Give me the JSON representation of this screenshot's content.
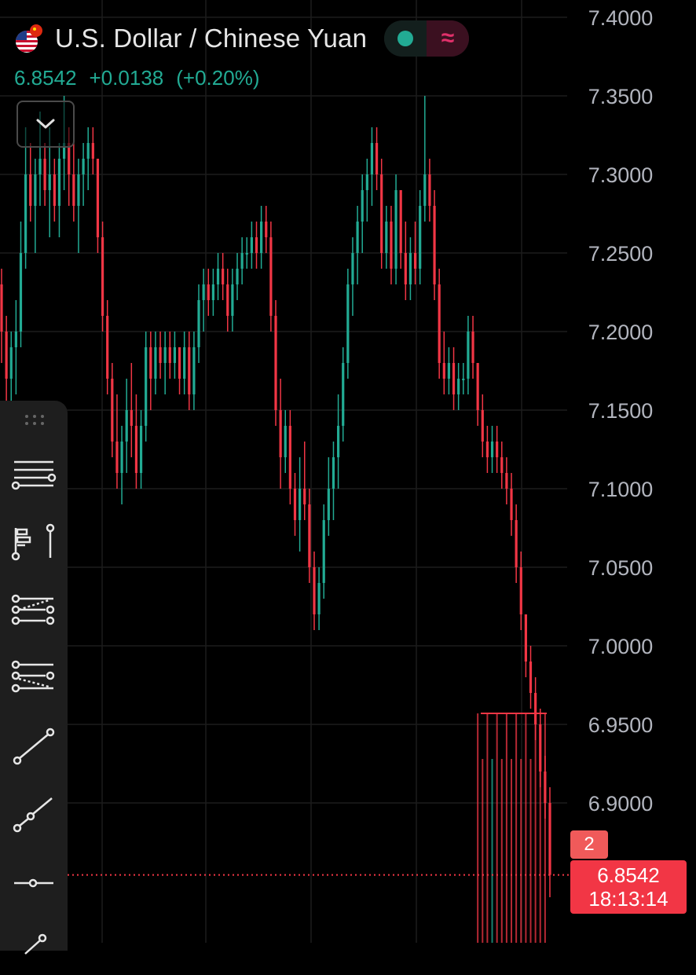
{
  "header": {
    "symbol_title": "U.S. Dollar / Chinese Yuan",
    "price": "6.8542",
    "change": "+0.0138",
    "change_pct": "(+0.20%)",
    "pill_right_glyph": "≈"
  },
  "last_price_badge": {
    "count": "2",
    "price": "6.8542",
    "countdown": "18:13:14"
  },
  "toolbar": {
    "tools": [
      "horizontal-lines-icon",
      "fib-retracement-icon",
      "fib-channel-icon",
      "fib-fan-icon",
      "trend-line-icon",
      "ray-icon",
      "horizontal-ray-icon",
      "more-tools-icon"
    ]
  },
  "colors": {
    "up": "#22ab94",
    "down": "#f23645",
    "background": "#000000",
    "grid": "#1c1c1c",
    "axis_text": "#b2b5be"
  },
  "chart_data": {
    "type": "candlestick",
    "y_axis_side": "right",
    "ylim": [
      6.81,
      7.41
    ],
    "y_ticks": [
      "7.4000",
      "7.3500",
      "7.3000",
      "7.2500",
      "7.2000",
      "7.1500",
      "7.1000",
      "7.0500",
      "7.0000",
      "6.9500",
      "6.9000"
    ],
    "last_price": 6.8542,
    "series": [
      {
        "name": "USDCNY",
        "values": [
          [
            7.23,
            7.24,
            7.18,
            7.2
          ],
          [
            7.2,
            7.21,
            7.15,
            7.17
          ],
          [
            7.17,
            7.2,
            7.15,
            7.19
          ],
          [
            7.19,
            7.22,
            7.16,
            7.2
          ],
          [
            7.2,
            7.27,
            7.19,
            7.25
          ],
          [
            7.25,
            7.33,
            7.24,
            7.3
          ],
          [
            7.3,
            7.32,
            7.27,
            7.28
          ],
          [
            7.28,
            7.31,
            7.25,
            7.3
          ],
          [
            7.3,
            7.34,
            7.28,
            7.31
          ],
          [
            7.31,
            7.32,
            7.28,
            7.29
          ],
          [
            7.29,
            7.33,
            7.26,
            7.3
          ],
          [
            7.3,
            7.31,
            7.27,
            7.28
          ],
          [
            7.28,
            7.32,
            7.26,
            7.31
          ],
          [
            7.31,
            7.35,
            7.29,
            7.32
          ],
          [
            7.32,
            7.33,
            7.28,
            7.3
          ],
          [
            7.3,
            7.32,
            7.27,
            7.28
          ],
          [
            7.28,
            7.31,
            7.25,
            7.3
          ],
          [
            7.3,
            7.32,
            7.28,
            7.31
          ],
          [
            7.31,
            7.33,
            7.29,
            7.32
          ],
          [
            7.32,
            7.33,
            7.3,
            7.31
          ],
          [
            7.31,
            7.31,
            7.25,
            7.26
          ],
          [
            7.26,
            7.27,
            7.2,
            7.21
          ],
          [
            7.21,
            7.22,
            7.16,
            7.17
          ],
          [
            7.17,
            7.18,
            7.12,
            7.13
          ],
          [
            7.13,
            7.16,
            7.1,
            7.11
          ],
          [
            7.11,
            7.14,
            7.09,
            7.13
          ],
          [
            7.13,
            7.17,
            7.11,
            7.15
          ],
          [
            7.15,
            7.18,
            7.12,
            7.14
          ],
          [
            7.14,
            7.16,
            7.1,
            7.11
          ],
          [
            7.11,
            7.15,
            7.1,
            7.14
          ],
          [
            7.14,
            7.2,
            7.13,
            7.19
          ],
          [
            7.19,
            7.2,
            7.15,
            7.17
          ],
          [
            7.17,
            7.2,
            7.16,
            7.19
          ],
          [
            7.19,
            7.2,
            7.17,
            7.18
          ],
          [
            7.18,
            7.2,
            7.16,
            7.19
          ],
          [
            7.19,
            7.2,
            7.17,
            7.18
          ],
          [
            7.18,
            7.2,
            7.17,
            7.19
          ],
          [
            7.19,
            7.19,
            7.16,
            7.17
          ],
          [
            7.17,
            7.2,
            7.16,
            7.19
          ],
          [
            7.19,
            7.2,
            7.15,
            7.16
          ],
          [
            7.16,
            7.2,
            7.15,
            7.19
          ],
          [
            7.19,
            7.23,
            7.18,
            7.22
          ],
          [
            7.22,
            7.24,
            7.2,
            7.23
          ],
          [
            7.23,
            7.24,
            7.21,
            7.22
          ],
          [
            7.22,
            7.24,
            7.21,
            7.23
          ],
          [
            7.23,
            7.25,
            7.22,
            7.24
          ],
          [
            7.24,
            7.25,
            7.22,
            7.23
          ],
          [
            7.23,
            7.24,
            7.2,
            7.21
          ],
          [
            7.21,
            7.24,
            7.2,
            7.23
          ],
          [
            7.23,
            7.25,
            7.22,
            7.24
          ],
          [
            7.24,
            7.26,
            7.23,
            7.25
          ],
          [
            7.25,
            7.26,
            7.24,
            7.25
          ],
          [
            7.25,
            7.27,
            7.24,
            7.26
          ],
          [
            7.26,
            7.27,
            7.24,
            7.25
          ],
          [
            7.25,
            7.28,
            7.24,
            7.27
          ],
          [
            7.27,
            7.28,
            7.25,
            7.26
          ],
          [
            7.26,
            7.27,
            7.2,
            7.21
          ],
          [
            7.21,
            7.22,
            7.14,
            7.15
          ],
          [
            7.15,
            7.17,
            7.1,
            7.12
          ],
          [
            7.12,
            7.15,
            7.11,
            7.14
          ],
          [
            7.14,
            7.15,
            7.09,
            7.1
          ],
          [
            7.1,
            7.11,
            7.07,
            7.08
          ],
          [
            7.08,
            7.12,
            7.06,
            7.1
          ],
          [
            7.1,
            7.13,
            7.08,
            7.09
          ],
          [
            7.09,
            7.1,
            7.04,
            7.05
          ],
          [
            7.05,
            7.06,
            7.01,
            7.02
          ],
          [
            7.02,
            7.05,
            7.01,
            7.04
          ],
          [
            7.04,
            7.09,
            7.03,
            7.08
          ],
          [
            7.08,
            7.12,
            7.07,
            7.1
          ],
          [
            7.1,
            7.13,
            7.08,
            7.12
          ],
          [
            7.12,
            7.16,
            7.1,
            7.14
          ],
          [
            7.14,
            7.19,
            7.13,
            7.18
          ],
          [
            7.18,
            7.24,
            7.17,
            7.23
          ],
          [
            7.23,
            7.26,
            7.21,
            7.25
          ],
          [
            7.25,
            7.28,
            7.23,
            7.27
          ],
          [
            7.27,
            7.3,
            7.25,
            7.29
          ],
          [
            7.29,
            7.31,
            7.27,
            7.3
          ],
          [
            7.3,
            7.33,
            7.28,
            7.32
          ],
          [
            7.32,
            7.33,
            7.29,
            7.3
          ],
          [
            7.3,
            7.31,
            7.24,
            7.25
          ],
          [
            7.25,
            7.28,
            7.24,
            7.27
          ],
          [
            7.27,
            7.28,
            7.23,
            7.24
          ],
          [
            7.24,
            7.3,
            7.23,
            7.29
          ],
          [
            7.29,
            7.29,
            7.24,
            7.25
          ],
          [
            7.25,
            7.27,
            7.22,
            7.23
          ],
          [
            7.23,
            7.26,
            7.22,
            7.25
          ],
          [
            7.25,
            7.27,
            7.23,
            7.24
          ],
          [
            7.24,
            7.29,
            7.23,
            7.28
          ],
          [
            7.28,
            7.35,
            7.27,
            7.3
          ],
          [
            7.3,
            7.31,
            7.27,
            7.28
          ],
          [
            7.28,
            7.29,
            7.22,
            7.23
          ],
          [
            7.23,
            7.24,
            7.17,
            7.18
          ],
          [
            7.18,
            7.2,
            7.16,
            7.17
          ],
          [
            7.17,
            7.19,
            7.16,
            7.18
          ],
          [
            7.18,
            7.19,
            7.15,
            7.16
          ],
          [
            7.16,
            7.18,
            7.15,
            7.17
          ],
          [
            7.17,
            7.18,
            7.16,
            7.17
          ],
          [
            7.17,
            7.21,
            7.16,
            7.2
          ],
          [
            7.2,
            7.21,
            7.17,
            7.18
          ],
          [
            7.18,
            7.18,
            7.14,
            7.15
          ],
          [
            7.15,
            7.16,
            7.12,
            7.13
          ],
          [
            7.13,
            7.14,
            7.11,
            7.12
          ],
          [
            7.12,
            7.14,
            7.11,
            7.13
          ],
          [
            7.13,
            7.14,
            7.11,
            7.12
          ],
          [
            7.12,
            7.13,
            7.1,
            7.11
          ],
          [
            7.11,
            7.12,
            7.09,
            7.1
          ],
          [
            7.1,
            7.11,
            7.07,
            7.08
          ],
          [
            7.08,
            7.09,
            7.04,
            7.05
          ],
          [
            7.05,
            7.06,
            7.01,
            7.02
          ],
          [
            7.02,
            7.02,
            6.98,
            6.99
          ],
          [
            6.99,
            7.0,
            6.96,
            6.97
          ],
          [
            6.97,
            6.98,
            6.94,
            6.95
          ],
          [
            6.95,
            6.96,
            6.91,
            6.92
          ],
          [
            6.92,
            6.93,
            6.89,
            6.9
          ],
          [
            6.9,
            6.91,
            6.84,
            6.8542
          ]
        ]
      }
    ]
  }
}
